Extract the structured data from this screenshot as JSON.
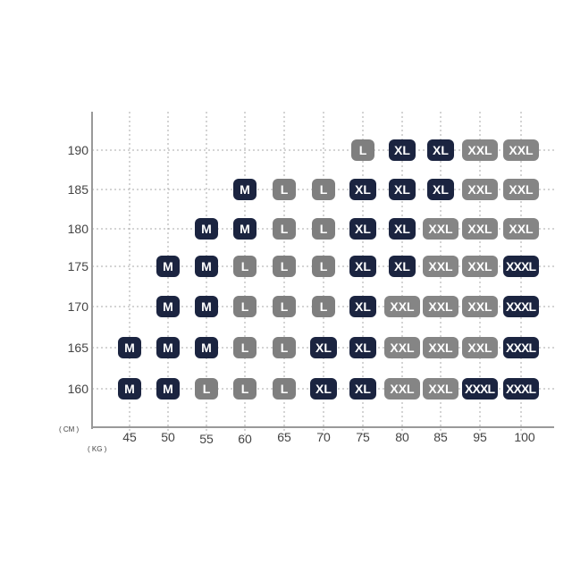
{
  "chart_data": {
    "type": "table",
    "x_unit": "( KG )",
    "y_unit": "( CM )",
    "x": [
      45,
      50,
      55,
      60,
      65,
      70,
      75,
      80,
      85,
      95,
      100
    ],
    "y": [
      190,
      185,
      180,
      175,
      170,
      165,
      160
    ],
    "cells": [
      [
        null,
        null,
        null,
        null,
        null,
        null,
        "L",
        "XL",
        "XL",
        "XXL",
        "XXL"
      ],
      [
        null,
        null,
        null,
        "M",
        "L",
        "L",
        "XL",
        "XL",
        "XL",
        "XXL",
        "XXL"
      ],
      [
        null,
        null,
        "M",
        "M",
        "L",
        "L",
        "XL",
        "XL",
        "XXL",
        "XXL",
        "XXL"
      ],
      [
        null,
        "M",
        "M",
        "L",
        "L",
        "L",
        "XL",
        "XL",
        "XXL",
        "XXL",
        "XXXL"
      ],
      [
        null,
        "M",
        "M",
        "L",
        "L",
        "L",
        "XL",
        "XXL",
        "XXL",
        "XXL",
        "XXXL"
      ],
      [
        "M",
        "M",
        "M",
        "L",
        "L",
        "XL",
        "XL",
        "XXL",
        "XXL",
        "XXL",
        "XXXL"
      ],
      [
        "M",
        "M",
        "L",
        "L",
        "L",
        "XL",
        "XL",
        "XXL",
        "XXL",
        "XXXL",
        "XXXL"
      ]
    ],
    "size_colors": {
      "M": "#1b2440",
      "L": "#7f7f7f",
      "XL": "#1b2440",
      "XXL": "#858585",
      "XXXL": "#1b2440"
    },
    "grid": true
  }
}
